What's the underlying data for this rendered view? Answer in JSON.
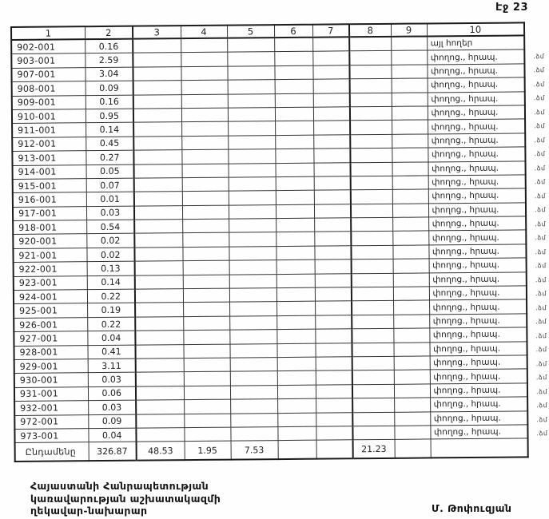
{
  "page_label": "Էջ 23",
  "table": {
    "column_headers": [
      "1",
      "2",
      "3",
      "4",
      "5",
      "6",
      "7",
      "8",
      "9",
      "10"
    ],
    "rows": [
      {
        "code": "902-001",
        "area": "0.16",
        "note": "այլ հողեր",
        "margin": ""
      },
      {
        "code": "903-001",
        "area": "2.59",
        "note": "փողոց., հրապ.",
        "margin": ".ձմ"
      },
      {
        "code": "907-001",
        "area": "3.04",
        "note": "փողոց., հրապ.",
        "margin": ".ձմ"
      },
      {
        "code": "908-001",
        "area": "0.09",
        "note": "փողոց., հրապ.",
        "margin": ".ձմ"
      },
      {
        "code": "909-001",
        "area": "0.16",
        "note": "փողոց., հրապ.",
        "margin": ".ձմ"
      },
      {
        "code": "910-001",
        "area": "0.95",
        "note": "փողոց., հրապ.",
        "margin": ".ձմ"
      },
      {
        "code": "911-001",
        "area": "0.14",
        "note": "փողոց., հրապ.",
        "margin": ".ձմ"
      },
      {
        "code": "912-001",
        "area": "0.45",
        "note": "փողոց., հրապ.",
        "margin": ".ձմ"
      },
      {
        "code": "913-001",
        "area": "0.27",
        "note": "փողոց., հրապ.",
        "margin": ".ձմ"
      },
      {
        "code": "914-001",
        "area": "0.05",
        "note": "փողոց., հրապ.",
        "margin": ".ձմ"
      },
      {
        "code": "915-001",
        "area": "0.07",
        "note": "փողոց., հրապ.",
        "margin": ".ձմ"
      },
      {
        "code": "916-001",
        "area": "0.01",
        "note": "փողոց., հրապ.",
        "margin": ".ձմ"
      },
      {
        "code": "917-001",
        "area": "0.03",
        "note": "փողոց., հրապ.",
        "margin": ".ձմ"
      },
      {
        "code": "918-001",
        "area": "0.54",
        "note": "փողոց., հրապ.",
        "margin": ".ձմ"
      },
      {
        "code": "920-001",
        "area": "0.02",
        "note": "փողոց., հրապ.",
        "margin": ".ձմ"
      },
      {
        "code": "921-001",
        "area": "0.02",
        "note": "փողոց., հրապ.",
        "margin": ".ձմ"
      },
      {
        "code": "922-001",
        "area": "0.13",
        "note": "փողոց., հրապ.",
        "margin": ".ձմ"
      },
      {
        "code": "923-001",
        "area": "0.14",
        "note": "փողոց., հրապ.",
        "margin": ".ձմ"
      },
      {
        "code": "924-001",
        "area": "0.22",
        "note": "փողոց., հրապ.",
        "margin": ".ձմ"
      },
      {
        "code": "925-001",
        "area": "0.19",
        "note": "փողոց., հրապ.",
        "margin": ".ձմ"
      },
      {
        "code": "926-001",
        "area": "0.22",
        "note": "փողոց., հրապ.",
        "margin": ".ձմ"
      },
      {
        "code": "927-001",
        "area": "0.04",
        "note": "փողոց., հրապ.",
        "margin": ".ձմ"
      },
      {
        "code": "928-001",
        "area": "0.41",
        "note": "փողոց., հրապ.",
        "margin": ".ձմ"
      },
      {
        "code": "929-001",
        "area": "3.11",
        "note": "փողոց., հրապ.",
        "margin": ".ձմ"
      },
      {
        "code": "930-001",
        "area": "0.03",
        "note": "փողոց., հրապ.",
        "margin": ".ձմ"
      },
      {
        "code": "931-001",
        "area": "0.06",
        "note": "փողոց., հրապ.",
        "margin": ".ձմ"
      },
      {
        "code": "932-001",
        "area": "0.03",
        "note": "փողոց., հրապ.",
        "margin": ".ձմ"
      },
      {
        "code": "972-001",
        "area": "0.09",
        "note": "փողոց., հրապ.",
        "margin": ".ձմ"
      },
      {
        "code": "973-001",
        "area": "0.04",
        "note": "փողոց., հրապ.",
        "margin": ".ձմ"
      }
    ],
    "total_row": {
      "label": "Ընդամենը",
      "values": [
        "326.87",
        "48.53",
        "1.95",
        "7.53",
        "",
        "",
        "21.23",
        ""
      ],
      "note": ""
    }
  },
  "footer": {
    "org_lines": [
      "Հայաստանի Հանրապետության",
      "կառավարության աշխատակազմի",
      "ղեկավար-նախարար"
    ],
    "signature_name": "Մ. Թոփուզյան"
  },
  "colors": {
    "paper": "#fefefe",
    "ink": "#1b1b1b",
    "border": "#343434"
  }
}
